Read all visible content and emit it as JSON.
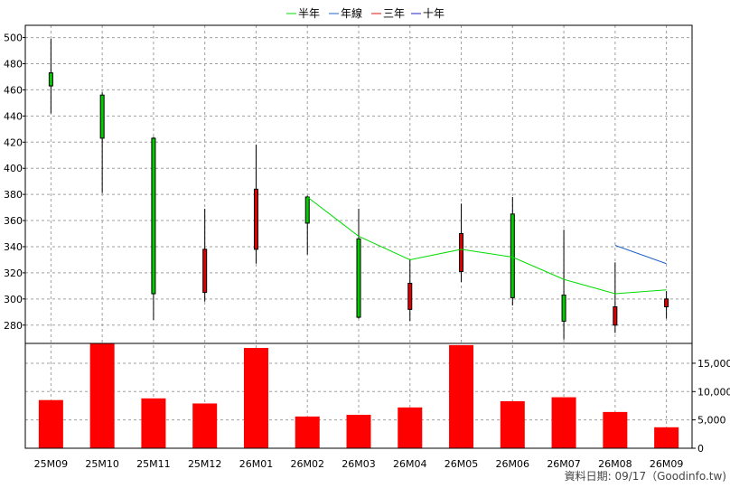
{
  "chart_data": {
    "type": "candlestick",
    "legend": [
      {
        "label": "半年",
        "color": "#00dd00"
      },
      {
        "label": "年線",
        "color": "#1e64c8"
      },
      {
        "label": "三年",
        "color": "#e01010"
      },
      {
        "label": "十年",
        "color": "#2020c0"
      }
    ],
    "categories": [
      "25M09",
      "25M10",
      "25M11",
      "25M12",
      "26M01",
      "26M02",
      "26M03",
      "26M04",
      "26M05",
      "26M06",
      "26M07",
      "26M08",
      "26M09"
    ],
    "price_axis": {
      "ticks": [
        280,
        300,
        320,
        340,
        360,
        380,
        400,
        420,
        440,
        460,
        480,
        500
      ],
      "range": [
        266,
        508
      ]
    },
    "volume_axis": {
      "ticks": [
        "0",
        "5,000",
        "10,000",
        "15,000"
      ],
      "tick_values": [
        0,
        5000,
        10000,
        15000
      ],
      "range": [
        0,
        18500
      ]
    },
    "candles": [
      {
        "open": 463,
        "close": 473,
        "high": 499,
        "low": 442
      },
      {
        "open": 423,
        "close": 456,
        "high": 458,
        "low": 381
      },
      {
        "open": 304,
        "close": 423,
        "high": 424,
        "low": 284
      },
      {
        "open": 338,
        "close": 305,
        "high": 369,
        "low": 298
      },
      {
        "open": 384,
        "close": 338,
        "high": 418,
        "low": 327
      },
      {
        "open": 358,
        "close": 378,
        "high": 379,
        "low": 334
      },
      {
        "open": 286,
        "close": 346,
        "high": 369,
        "low": 285
      },
      {
        "open": 312,
        "close": 292,
        "high": 330,
        "low": 283
      },
      {
        "open": 350,
        "close": 321,
        "high": 373,
        "low": 313
      },
      {
        "open": 301,
        "close": 365,
        "high": 378,
        "low": 295
      },
      {
        "open": 283,
        "close": 303,
        "high": 353,
        "low": 269
      },
      {
        "open": 294,
        "close": 280,
        "high": 328,
        "low": 274
      },
      {
        "open": 300,
        "close": 294,
        "high": 306,
        "low": 285
      }
    ],
    "ma_half_year": [
      null,
      null,
      null,
      null,
      null,
      378,
      348,
      330,
      338,
      332,
      315,
      304,
      307
    ],
    "ma_year": [
      null,
      null,
      null,
      null,
      null,
      null,
      null,
      null,
      null,
      null,
      null,
      341,
      327
    ],
    "volumes": [
      8500,
      18500,
      8800,
      7900,
      17700,
      5600,
      5900,
      7200,
      18200,
      8300,
      9000,
      6400,
      3700
    ],
    "up_color": "#00cc00",
    "down_color": "#dd0000",
    "volume_color": "#ff0000"
  },
  "footer": {
    "text": "資料日期: 09/17（Goodinfo.tw)"
  }
}
